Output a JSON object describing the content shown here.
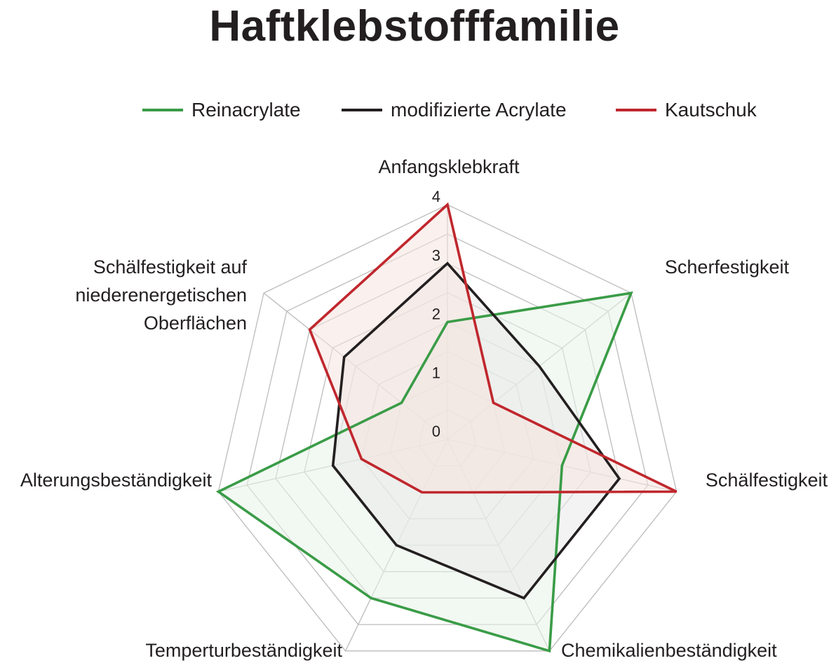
{
  "chart_data": {
    "type": "radar",
    "title": "Haftklebstofffamilie",
    "axes": [
      {
        "label": [
          "Anfangsklebkraft"
        ]
      },
      {
        "label": [
          "Scherfestigkeit"
        ]
      },
      {
        "label": [
          "Schälfestigkeit"
        ]
      },
      {
        "label": [
          "Chemikalienbeständigkeit"
        ]
      },
      {
        "label": [
          "Temperturbeständigkeit"
        ]
      },
      {
        "label": [
          "Alterungsbeständigkeit"
        ]
      },
      {
        "label": [
          "Schälfestigkeit auf",
          "niederenergetischen",
          "Oberflächen"
        ]
      }
    ],
    "rlim": [
      0,
      4
    ],
    "ticks": [
      "0",
      "1",
      "2",
      "3",
      "4"
    ],
    "grid_levels": 8,
    "legend_position": "top",
    "series": [
      {
        "name": "Reinacrylate",
        "color": "#3a9c47",
        "fill": "#e8f3e8",
        "values": [
          2,
          4,
          2,
          4,
          3,
          4,
          1
        ]
      },
      {
        "name": "modifizierte Acrylate",
        "color": "#231f20",
        "fill": "#e9e9ea",
        "values": [
          3,
          2,
          3,
          3,
          2,
          2,
          2.25
        ]
      },
      {
        "name": "Kautschuk",
        "color": "#c0272d",
        "fill": "#f6e4df",
        "values": [
          4,
          1,
          4,
          1,
          1,
          1.5,
          3
        ]
      }
    ]
  }
}
